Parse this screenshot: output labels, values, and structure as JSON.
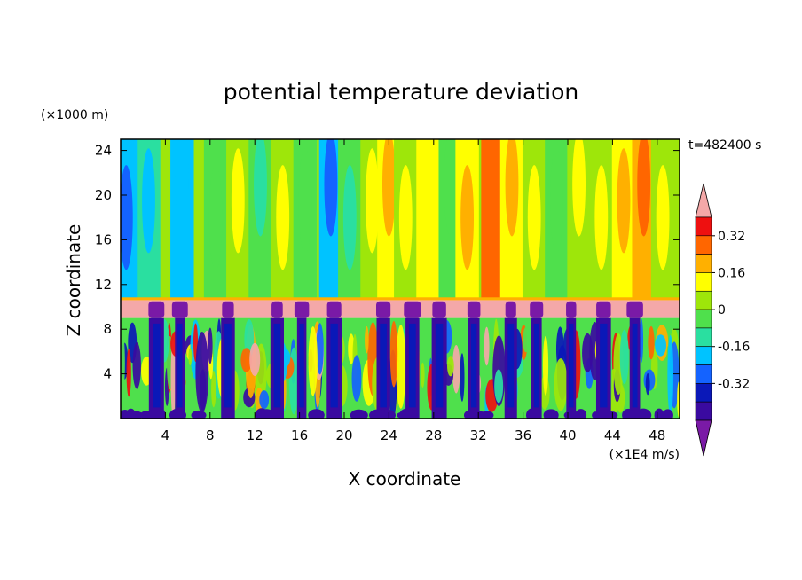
{
  "chart_data": {
    "type": "heatmap",
    "title": "potential temperature deviation",
    "xlabel": "X coordinate",
    "ylabel": "Z coordinate",
    "x_unit": "(×1E4 m/s)",
    "y_unit": "(×1000 m)",
    "time_label": "t=482400 s",
    "xlim": [
      0,
      50
    ],
    "ylim": [
      0,
      25
    ],
    "x_ticks": [
      4,
      8,
      12,
      16,
      20,
      24,
      28,
      32,
      36,
      40,
      44,
      48
    ],
    "y_ticks": [
      4,
      8,
      12,
      16,
      20,
      24
    ],
    "colorbar": {
      "levels": [
        -0.48,
        -0.4,
        -0.32,
        -0.24,
        -0.16,
        -0.08,
        0,
        0.08,
        0.16,
        0.24,
        0.32,
        0.4,
        0.48
      ],
      "labels": [
        "-0.32",
        "-0.16",
        "0",
        "0.16",
        "0.32"
      ],
      "label_values": [
        -0.32,
        -0.16,
        0,
        0.16,
        0.32
      ],
      "colors": [
        "#7a1aa6",
        "#3a0aa0",
        "#0a18b8",
        "#1463ff",
        "#00c3ff",
        "#2adfa0",
        "#4fe04c",
        "#9ee60a",
        "#ffff00",
        "#ffb000",
        "#ff6600",
        "#ee1010",
        "#f4a8a8"
      ]
    },
    "layers": {
      "stratosphere_bottom": 10.8,
      "inversion_band": [
        9.0,
        10.6
      ],
      "turbulent_layer_top": 9.0
    },
    "stratosphere_columns": [
      {
        "x": 0.5,
        "value": -0.2
      },
      {
        "x": 2.5,
        "value": -0.12
      },
      {
        "x": 5.5,
        "value": -0.18
      },
      {
        "x": 8.5,
        "value": -0.02
      },
      {
        "x": 10.5,
        "value": 0.02
      },
      {
        "x": 12.5,
        "value": -0.04
      },
      {
        "x": 14.5,
        "value": 0.05
      },
      {
        "x": 16.5,
        "value": -0.02
      },
      {
        "x": 18.8,
        "value": -0.2
      },
      {
        "x": 20.5,
        "value": -0.06
      },
      {
        "x": 22.5,
        "value": 0.02
      },
      {
        "x": 24.0,
        "value": 0.1
      },
      {
        "x": 25.5,
        "value": 0.03
      },
      {
        "x": 27.5,
        "value": 0.08
      },
      {
        "x": 29.5,
        "value": -0.02
      },
      {
        "x": 31.0,
        "value": 0.14
      },
      {
        "x": 33.3,
        "value": 0.24
      },
      {
        "x": 35.0,
        "value": 0.1
      },
      {
        "x": 37.0,
        "value": 0.04
      },
      {
        "x": 39.0,
        "value": -0.02
      },
      {
        "x": 41.0,
        "value": 0.06
      },
      {
        "x": 43.0,
        "value": 0.02
      },
      {
        "x": 45.0,
        "value": 0.12
      },
      {
        "x": 46.8,
        "value": 0.22
      },
      {
        "x": 48.5,
        "value": 0.02
      }
    ],
    "cold_plumes_x": [
      3.2,
      5.3,
      9.6,
      14.0,
      16.2,
      19.1,
      23.5,
      26.1,
      28.5,
      31.6,
      34.9,
      37.2,
      40.3,
      43.2,
      46.0
    ]
  }
}
